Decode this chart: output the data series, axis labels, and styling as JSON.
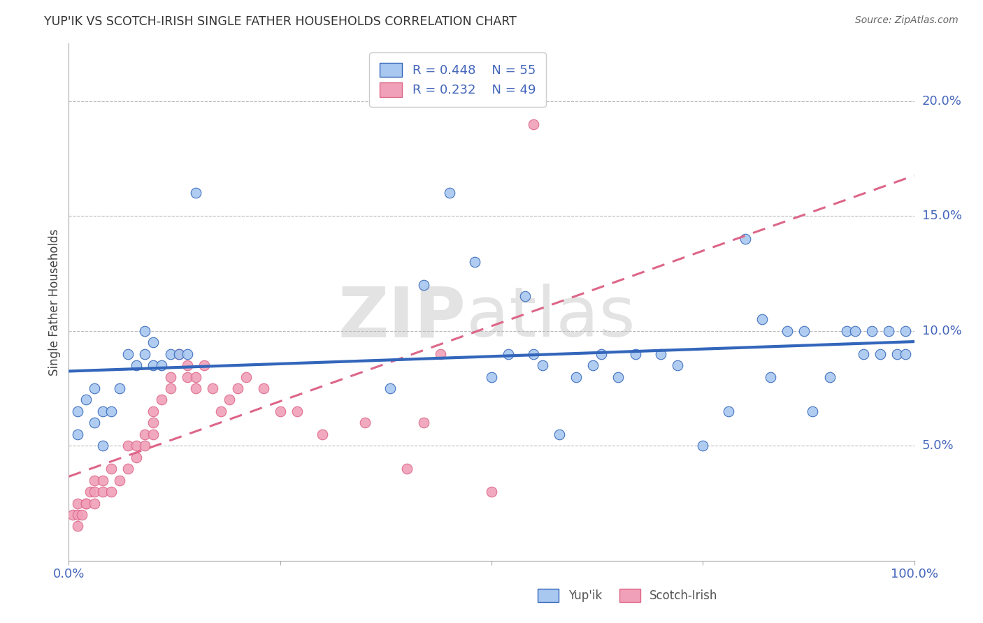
{
  "title": "YUP'IK VS SCOTCH-IRISH SINGLE FATHER HOUSEHOLDS CORRELATION CHART",
  "source": "Source: ZipAtlas.com",
  "ylabel": "Single Father Households",
  "ylabel_right_ticks": [
    "20.0%",
    "15.0%",
    "10.0%",
    "5.0%"
  ],
  "ylabel_right_values": [
    0.2,
    0.15,
    0.1,
    0.05
  ],
  "xlim": [
    0.0,
    1.0
  ],
  "ylim": [
    0.0,
    0.225
  ],
  "legend1_R": "0.448",
  "legend1_N": "55",
  "legend2_R": "0.232",
  "legend2_N": "49",
  "blue_color": "#A8C8F0",
  "pink_color": "#F0A0B8",
  "line_blue": "#3366BB",
  "line_pink": "#DD6688",
  "watermark_zip": "ZIP",
  "watermark_atlas": "atlas",
  "yuipik_x": [
    0.01,
    0.01,
    0.02,
    0.03,
    0.03,
    0.04,
    0.04,
    0.05,
    0.06,
    0.07,
    0.08,
    0.09,
    0.09,
    0.1,
    0.1,
    0.11,
    0.12,
    0.13,
    0.14,
    0.15,
    0.38,
    0.42,
    0.45,
    0.48,
    0.5,
    0.52,
    0.54,
    0.55,
    0.56,
    0.58,
    0.6,
    0.62,
    0.63,
    0.65,
    0.67,
    0.7,
    0.72,
    0.75,
    0.78,
    0.8,
    0.82,
    0.83,
    0.85,
    0.87,
    0.88,
    0.9,
    0.92,
    0.93,
    0.94,
    0.95,
    0.96,
    0.97,
    0.98,
    0.99,
    0.99
  ],
  "yuipik_y": [
    0.055,
    0.065,
    0.07,
    0.06,
    0.075,
    0.05,
    0.065,
    0.065,
    0.075,
    0.09,
    0.085,
    0.09,
    0.1,
    0.085,
    0.095,
    0.085,
    0.09,
    0.09,
    0.09,
    0.16,
    0.075,
    0.12,
    0.16,
    0.13,
    0.08,
    0.09,
    0.115,
    0.09,
    0.085,
    0.055,
    0.08,
    0.085,
    0.09,
    0.08,
    0.09,
    0.09,
    0.085,
    0.05,
    0.065,
    0.14,
    0.105,
    0.08,
    0.1,
    0.1,
    0.065,
    0.08,
    0.1,
    0.1,
    0.09,
    0.1,
    0.09,
    0.1,
    0.09,
    0.1,
    0.09
  ],
  "scotch_x": [
    0.005,
    0.01,
    0.01,
    0.01,
    0.015,
    0.02,
    0.02,
    0.025,
    0.03,
    0.03,
    0.03,
    0.04,
    0.04,
    0.05,
    0.05,
    0.06,
    0.07,
    0.07,
    0.08,
    0.08,
    0.09,
    0.09,
    0.1,
    0.1,
    0.1,
    0.11,
    0.12,
    0.12,
    0.13,
    0.14,
    0.14,
    0.15,
    0.15,
    0.16,
    0.17,
    0.18,
    0.19,
    0.2,
    0.21,
    0.23,
    0.25,
    0.27,
    0.3,
    0.35,
    0.4,
    0.42,
    0.44,
    0.5,
    0.55
  ],
  "scotch_y": [
    0.02,
    0.015,
    0.02,
    0.025,
    0.02,
    0.025,
    0.025,
    0.03,
    0.025,
    0.03,
    0.035,
    0.03,
    0.035,
    0.04,
    0.03,
    0.035,
    0.04,
    0.05,
    0.045,
    0.05,
    0.05,
    0.055,
    0.055,
    0.06,
    0.065,
    0.07,
    0.075,
    0.08,
    0.09,
    0.08,
    0.085,
    0.075,
    0.08,
    0.085,
    0.075,
    0.065,
    0.07,
    0.075,
    0.08,
    0.075,
    0.065,
    0.065,
    0.055,
    0.06,
    0.04,
    0.06,
    0.09,
    0.03,
    0.19
  ]
}
